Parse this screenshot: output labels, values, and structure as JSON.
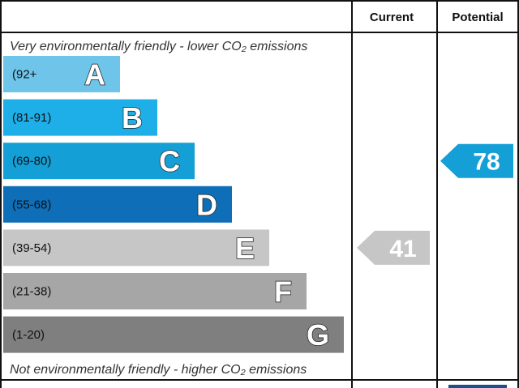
{
  "header": {
    "current_label": "Current",
    "potential_label": "Potential"
  },
  "captions": {
    "top": "Very environmentally friendly - lower CO₂ emissions",
    "bottom": "Not environmentally friendly - higher CO₂ emissions"
  },
  "chart_data": {
    "type": "bar",
    "bands": [
      {
        "letter": "A",
        "range": "(92+",
        "color": "#6fc4ea",
        "range_text_color": "#111111"
      },
      {
        "letter": "B",
        "range": "(81-91)",
        "color": "#1eaee8",
        "range_text_color": "#111111"
      },
      {
        "letter": "C",
        "range": "(69-80)",
        "color": "#159fd7",
        "range_text_color": "#111111"
      },
      {
        "letter": "D",
        "range": "(55-68)",
        "color": "#0e6fb8",
        "range_text_color": "#111111"
      },
      {
        "letter": "E",
        "range": "(39-54)",
        "color": "#c6c6c6",
        "range_text_color": "#111111"
      },
      {
        "letter": "F",
        "range": "(21-38)",
        "color": "#a6a6a6",
        "range_text_color": "#ffffff"
      },
      {
        "letter": "G",
        "range": "(1-20)",
        "color": "#7f7f7f",
        "range_text_color": "#ffffff"
      }
    ],
    "current": {
      "value": 41,
      "band": "E",
      "color": "#c6c6c6"
    },
    "potential": {
      "value": 78,
      "band": "C",
      "color": "#159fd7"
    }
  }
}
